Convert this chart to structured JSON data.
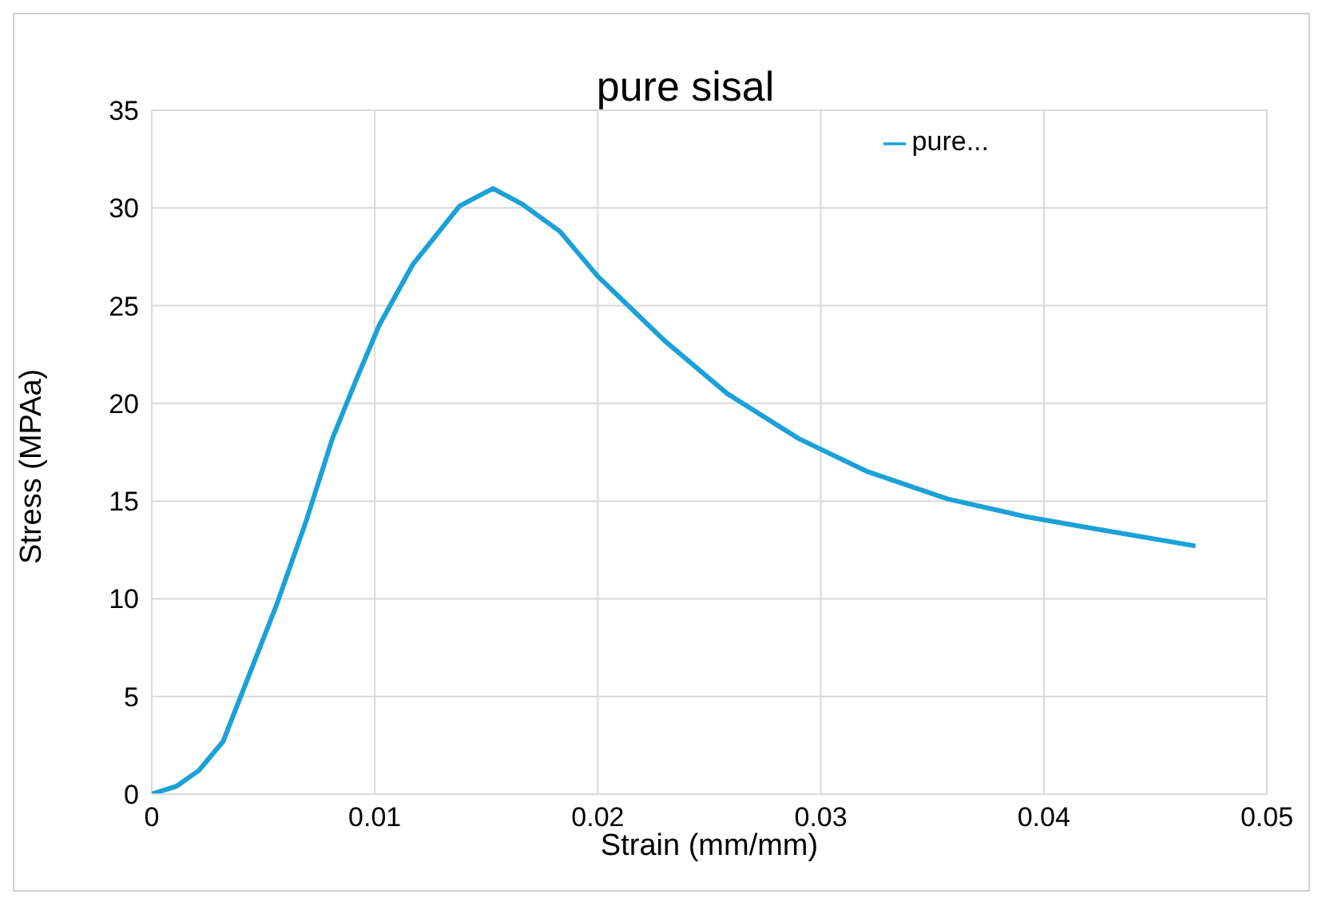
{
  "chart_data": {
    "type": "line",
    "title": "pure sisal",
    "xlabel": "Strain (mm/mm)",
    "ylabel": "Stress (MPAa)",
    "xlim": [
      0,
      0.05
    ],
    "xticks": [
      0,
      0.01,
      0.02,
      0.03,
      0.04,
      0.05
    ],
    "ylim": [
      0,
      35
    ],
    "yticks": [
      0,
      5,
      10,
      15,
      20,
      25,
      30,
      35
    ],
    "grid": true,
    "legend": "top right",
    "marker": "none",
    "line_style": "solid",
    "series": [
      {
        "name": "pure...",
        "color": "#1ba1d8",
        "x": [
          0,
          0.0011,
          0.0021,
          0.0032,
          0.0044,
          0.0056,
          0.0069,
          0.0081,
          0.0092,
          0.0102,
          0.0117,
          0.0138,
          0.0153,
          0.0166,
          0.0183,
          0.02,
          0.023,
          0.0258,
          0.029,
          0.0321,
          0.0357,
          0.0392,
          0.0417,
          0.0468
        ],
        "values": [
          0,
          0.4,
          1.2,
          2.7,
          6.2,
          9.7,
          13.9,
          18.2,
          21.3,
          24,
          27.1,
          30.1,
          31,
          30.2,
          28.8,
          26.5,
          23.2,
          20.5,
          18.2,
          16.5,
          15.1,
          14.2,
          13.7,
          12.7
        ]
      }
    ]
  }
}
